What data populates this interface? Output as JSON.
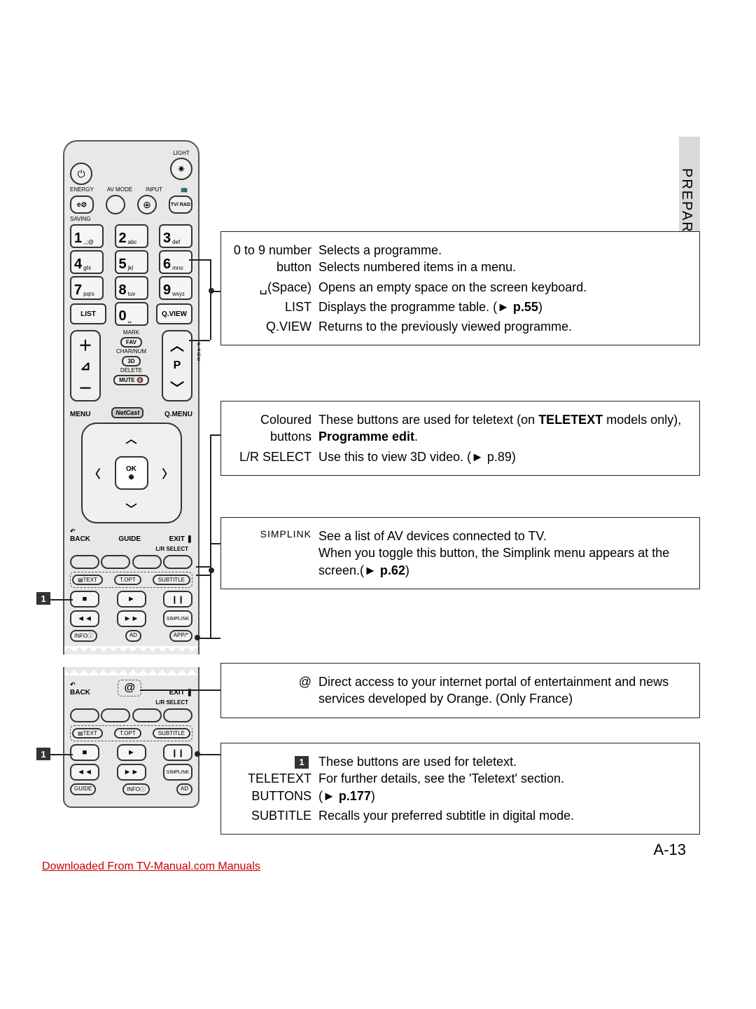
{
  "sideSection": "PREPARATION",
  "pageNumber": "A-13",
  "downloadLink": "Downloaded From TV-Manual.com Manuals",
  "remote": {
    "topLabels": {
      "light": "LIGHT",
      "energy": "ENERGY",
      "avmode": "AV MODE",
      "input": "INPUT",
      "tvrad": "TV/\nRAD",
      "saving": "SAVING"
    },
    "numKeys": [
      {
        "n": "1",
        "s": ".,;@"
      },
      {
        "n": "2",
        "s": "abc"
      },
      {
        "n": "3",
        "s": "def"
      },
      {
        "n": "4",
        "s": "ghi"
      },
      {
        "n": "5",
        "s": "jkl"
      },
      {
        "n": "6",
        "s": "mno"
      },
      {
        "n": "7",
        "s": "pqrs"
      },
      {
        "n": "8",
        "s": "tuv"
      },
      {
        "n": "9",
        "s": "wxyz"
      }
    ],
    "list": "LIST",
    "zero": "0",
    "zeroSub": "␣",
    "qview": "Q.VIEW",
    "mark": "MARK",
    "fav": "FAV",
    "charnum": "CHAR/NUM",
    "threeD": "3D",
    "delete": "DELETE",
    "mute": "MUTE",
    "page": "P",
    "pageSide": "P\nA\nG\nE",
    "menu": "MENU",
    "netcast": "NetCast",
    "qmenu": "Q.MENU",
    "ok": "OK",
    "back": "BACK",
    "guide": "GUIDE",
    "exit": "EXIT",
    "lrselect": "L/R SELECT",
    "text": "TEXT",
    "topt": "T.OPT",
    "subtitle": "SUBTITLE",
    "simplink": "SIMPLINK",
    "info": "INFOⓘ",
    "ad": "AD",
    "app": "APP/*",
    "at": "@"
  },
  "callouts": {
    "one": "1"
  },
  "boxes": {
    "num": {
      "rows": [
        {
          "l": "0 to 9 number button",
          "r": "Selects a programme.\nSelects numbered items in a menu."
        },
        {
          "l": "␣(Space)",
          "r": "Opens an empty space on the screen keyboard."
        },
        {
          "l": "LIST",
          "r": "Displays the programme table. (► p.55)"
        },
        {
          "l": "Q.VIEW",
          "r": "Returns to the previously viewed programme."
        }
      ],
      "pRef1": "p.55"
    },
    "colour": {
      "rows": [
        {
          "l": "Coloured buttons",
          "r": "These buttons are used for teletext (on TELETEXT models only), Programme edit."
        },
        {
          "l": "L/R SELECT",
          "r": "Use this to view 3D video. (► p.89)"
        }
      ],
      "bold1": "TELETEXT",
      "bold2": "Programme edit"
    },
    "simplink": {
      "label": "SIMPLINK",
      "text": "See a list of AV devices connected to TV.\nWhen you toggle this button, the Simplink menu appears at the screen.(► p.62)",
      "pRef": "p.62"
    },
    "at": {
      "label": "@",
      "text": "Direct access to your internet portal of entertainment and news services developed by Orange. (Only France)"
    },
    "teletext": {
      "rows": [
        {
          "l": "TELETEXT BUTTONS",
          "r": "These buttons are used for teletext.\nFor further details, see the 'Teletext' section.\n(► p.177)"
        },
        {
          "l": "SUBTITLE",
          "r": "Recalls your preferred subtitle in digital mode."
        }
      ],
      "pRef": "p.177",
      "marker": "1"
    }
  },
  "layout": {
    "boxLeft": 315,
    "boxRight": 988,
    "numTop": 330,
    "numH": 160,
    "colourTop": 572,
    "colourH": 95,
    "simpTop": 738,
    "simpH": 72,
    "atTop": 946,
    "atH": 75,
    "teleTop": 1060,
    "teleH": 120
  }
}
